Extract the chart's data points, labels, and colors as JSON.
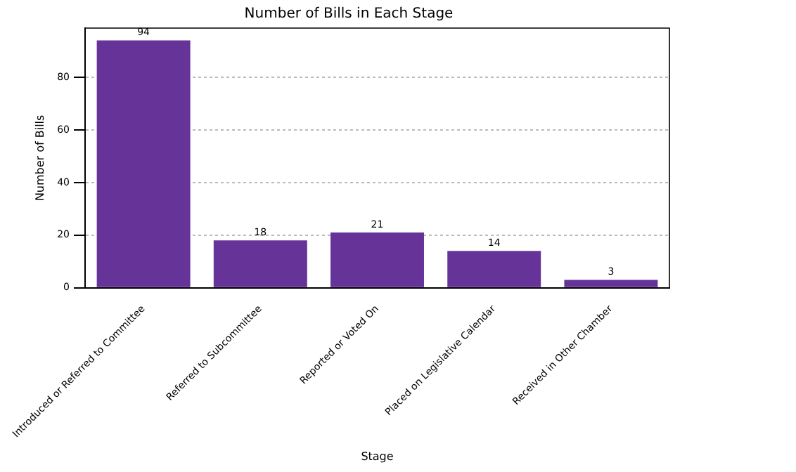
{
  "chart_data": {
    "type": "bar",
    "title": "Number of Bills in Each Stage",
    "xlabel": "Stage",
    "ylabel": "Number of Bills",
    "categories": [
      "Introduced or Referred to Committee",
      "Referred to Subcommittee",
      "Reported or Voted On",
      "Placed on Legislative Calendar",
      "Received in Other Chamber"
    ],
    "values": [
      94,
      18,
      21,
      14,
      3
    ],
    "color": "#663399",
    "ylim": [
      0,
      98.7
    ],
    "yticks": [
      0,
      20,
      40,
      60,
      80
    ],
    "grid": "y",
    "data_labels": true
  }
}
